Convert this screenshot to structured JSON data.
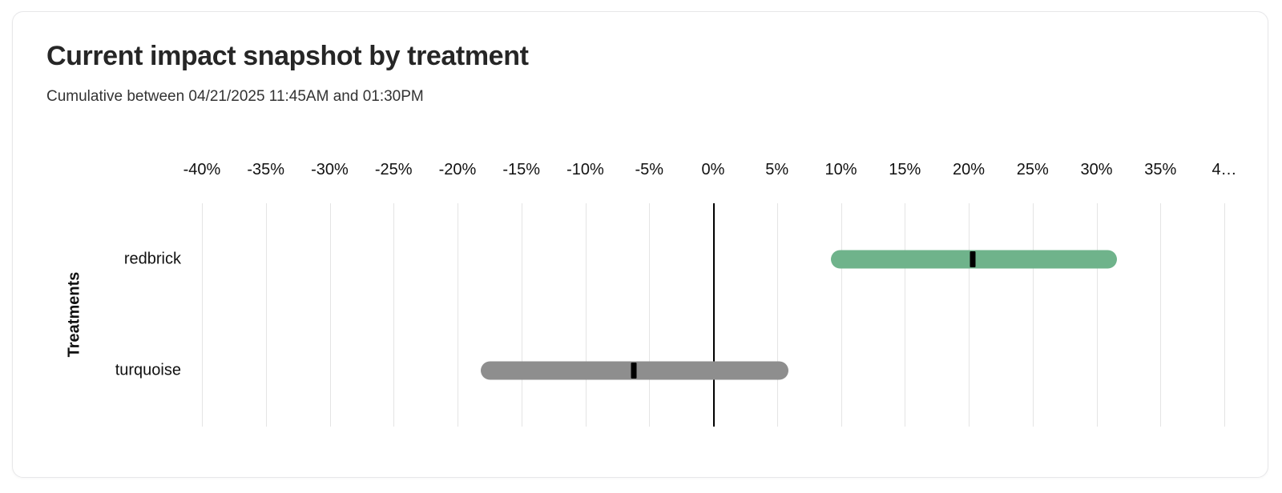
{
  "chart_data": {
    "type": "bar",
    "variant": "horizontal-interval",
    "title": "Current impact snapshot by treatment",
    "subtitle": "Cumulative between 04/21/2025 11:45AM and 01:30PM",
    "ylabel": "Treatments",
    "xlabel": "",
    "xlim": [
      -40,
      40
    ],
    "x_ticks": [
      -40,
      -35,
      -30,
      -25,
      -20,
      -15,
      -10,
      -5,
      0,
      5,
      10,
      15,
      20,
      25,
      30,
      35,
      40
    ],
    "x_tick_labels": [
      "-40%",
      "-35%",
      "-30%",
      "-25%",
      "-20%",
      "-15%",
      "-10%",
      "-5%",
      "0%",
      "5%",
      "10%",
      "15%",
      "20%",
      "25%",
      "30%",
      "35%",
      "4…"
    ],
    "categories": [
      "redbrick",
      "turquoise"
    ],
    "series": [
      {
        "name": "redbrick",
        "interval_low_pct": 9.2,
        "interval_high_pct": 31.6,
        "point_estimate_pct": 20.3,
        "bar_color": "#6FB38B"
      },
      {
        "name": "turquoise",
        "interval_low_pct": -18.2,
        "interval_high_pct": 5.9,
        "point_estimate_pct": -6.2,
        "bar_color": "#8E8E8E"
      }
    ],
    "grid": true,
    "legend": "none",
    "gridline_color": "#E4E4E4",
    "zero_line_color": "#000000",
    "point_marker_color": "#000000"
  },
  "colors": {
    "card_border": "#E7E7E9",
    "title_text": "#262626",
    "subtitle_text": "#333333",
    "axis_text": "#111111"
  }
}
